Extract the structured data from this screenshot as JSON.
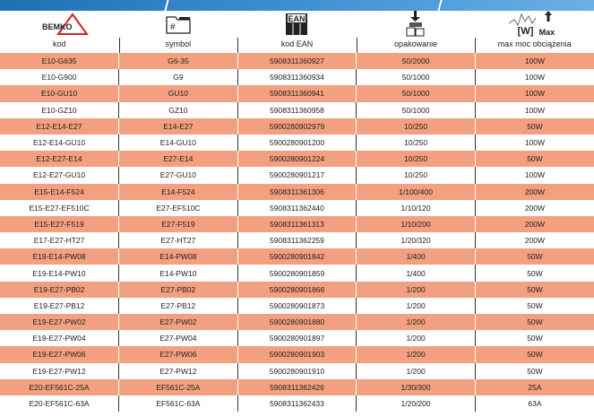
{
  "header": {
    "logo_text": "BEMKO",
    "ean_icon_text": "EAN",
    "power_icon_w": "[W]",
    "power_icon_max": "Max",
    "columns": [
      "kod",
      "symbol",
      "kod EAN",
      "opakowanie",
      "max moc obciążenia"
    ]
  },
  "colors": {
    "orange_row": "#f2a07f",
    "band": "#2f80c4"
  },
  "rows": [
    [
      "E10-G635",
      "G6-35",
      "5908311360927",
      "50/2000",
      "100W"
    ],
    [
      "E10-G900",
      "G9",
      "5908311360934",
      "50/1000",
      "100W"
    ],
    [
      "E10-GU10",
      "GU10",
      "5908311360941",
      "50/1000",
      "100W"
    ],
    [
      "E10-GZ10",
      "GZ10",
      "5908311360958",
      "50/1000",
      "100W"
    ],
    [
      "E12-E14-E27",
      "E14-E27",
      "5900280902979",
      "10/250",
      "50W"
    ],
    [
      "E12-E14-GU10",
      "E14-GU10",
      "5900280901200",
      "10/250",
      "100W"
    ],
    [
      "E12-E27-E14",
      "E27-E14",
      "5900280901224",
      "10/250",
      "50W"
    ],
    [
      "E12-E27-GU10",
      "E27-GU10",
      "5900280901217",
      "10/250",
      "100W"
    ],
    [
      "E15-E14-F524",
      "E14-F524",
      "5908311361306",
      "1/100/400",
      "200W"
    ],
    [
      "E15-E27-EF510C",
      "E27-EF510C",
      "5908311362440",
      "1/10/120",
      "200W"
    ],
    [
      "E15-E27-F519",
      "E27-F519",
      "5908311361313",
      "1/10/200",
      "200W"
    ],
    [
      "E17-E27-HT27",
      "E27-HT27",
      "5908311362259",
      "1/20/320",
      "200W"
    ],
    [
      "E19-E14-PW08",
      "E14-PW08",
      "5900280901842",
      "1/400",
      "50W"
    ],
    [
      "E19-E14-PW10",
      "E14-PW10",
      "5900280901859",
      "1/400",
      "50W"
    ],
    [
      "E19-E27-PB02",
      "E27-PB02",
      "5900280901866",
      "1/200",
      "50W"
    ],
    [
      "E19-E27-PB12",
      "E27-PB12",
      "5900280901873",
      "1/200",
      "50W"
    ],
    [
      "E19-E27-PW02",
      "E27-PW02",
      "5900280901880",
      "1/200",
      "50W"
    ],
    [
      "E19-E27-PW04",
      "E27-PW04",
      "5900280901897",
      "1/200",
      "50W"
    ],
    [
      "E19-E27-PW06",
      "E27-PW06",
      "5900280901903",
      "1/200",
      "50W"
    ],
    [
      "E19-E27-PW12",
      "E27-PW12",
      "5900280901910",
      "1/200",
      "50W"
    ],
    [
      "E20-EF561C-25A",
      "EF561C-25A",
      "5908311362426",
      "1/30/300",
      "25A"
    ],
    [
      "E20-EF561C-63A",
      "EF561C-63A",
      "5908311362433",
      "1/20/200",
      "63A"
    ]
  ]
}
